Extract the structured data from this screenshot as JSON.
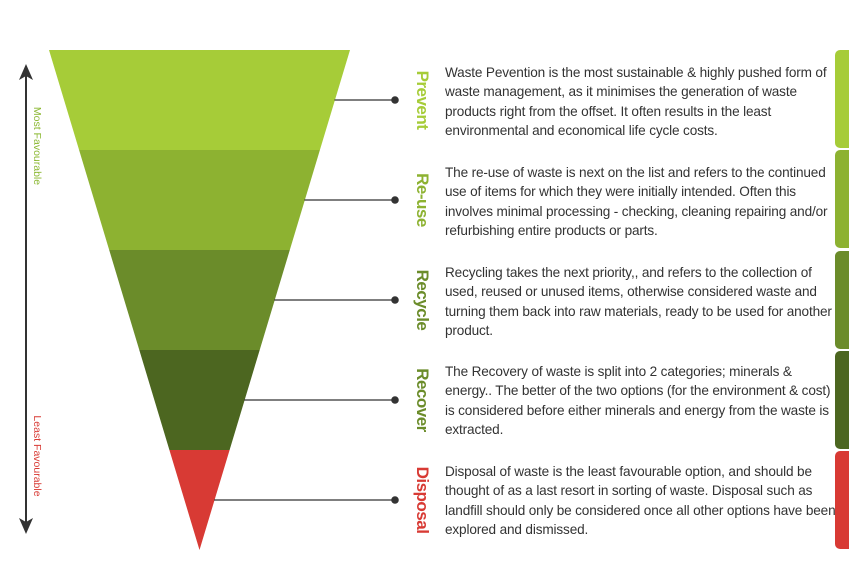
{
  "axis": {
    "top_label": "Most Favourable",
    "bottom_label": "Least Favourable",
    "top_color": "#8bb832",
    "bottom_color": "#d83a34"
  },
  "tiers": [
    {
      "label": "Prevent",
      "fill": "#a6cc38",
      "label_color": "#a6cc38",
      "description": "Waste Pevention is the most sustainable & highly pushed form of waste management, as it minimises the generation of waste products right from the offset.  It often  results in the least environmental and economical life cycle costs."
    },
    {
      "label": "Re-use",
      "fill": "#8db231",
      "label_color": "#8db231",
      "description": "The re-use of waste is next on the list and refers to the continued use of items for which they were initially intended. Often this involves minimal processing - checking, cleaning repairing and/or refurbishing entire products or parts."
    },
    {
      "label": "Recycle",
      "fill": "#6b8c2a",
      "label_color": "#6b8c2a",
      "description": "Recycling takes the next priority,, and refers to the collection of used, reused or unused items, otherwise considered waste and turning them back into raw materials, ready to be used for another product."
    },
    {
      "label": "Recover",
      "fill": "#4c6620",
      "label_color": "#6b8c2a",
      "description": "The Recovery of waste is split into 2 categories; minerals & energy.. The better of the two options (for the environment & cost) is considered before either minerals and energy from the waste is extracted."
    },
    {
      "label": "Disposal",
      "fill": "#d83a34",
      "label_color": "#d83a34",
      "description": "Disposal of waste is the least favourable option, and should be thought of as a last resort in sorting of waste. Disposal such as landfill should only be considered once all other options have been explored and dismissed."
    }
  ]
}
